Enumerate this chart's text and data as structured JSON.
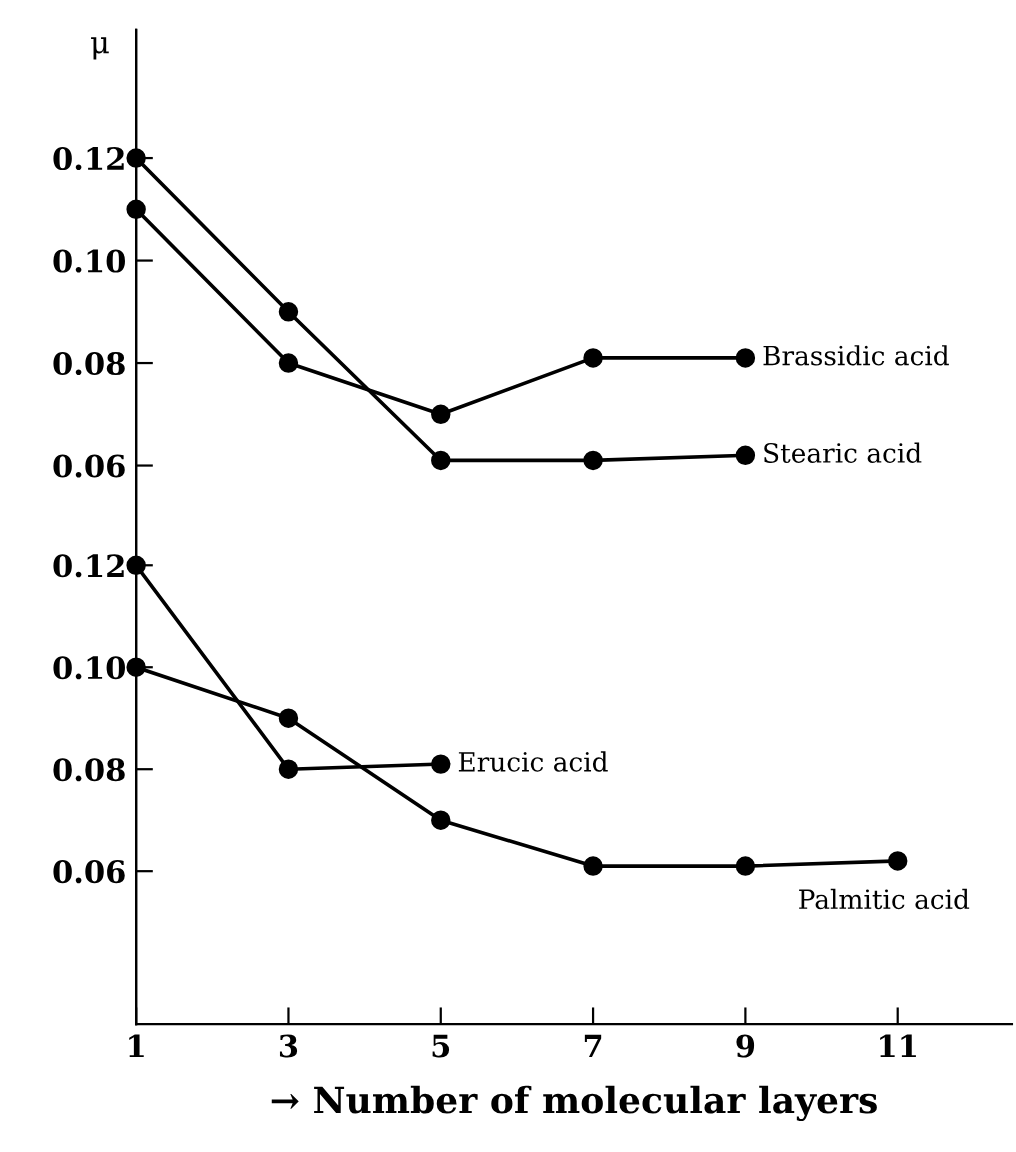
{
  "chart_data": [
    {
      "type": "line",
      "ylabel": "μ",
      "xlim": [
        1,
        12.5
      ],
      "xticks": [
        1,
        3,
        5,
        7,
        9,
        11
      ],
      "ylim": [
        -0.049,
        0.145
      ],
      "yticks": [
        0.06,
        0.08,
        {
          "value": 0.1,
          "label": "0.10"
        },
        0.12
      ],
      "tick_labels": "y",
      "grid": false,
      "marker": "circle",
      "line_style": "solid",
      "series": [
        {
          "name": "Brassidic acid",
          "color": "#000000",
          "x": [
            1,
            3,
            5,
            7,
            9
          ],
          "values": [
            0.11,
            0.08,
            0.07,
            0.081,
            0.081
          ]
        },
        {
          "name": "Stearic acid",
          "color": "#000000",
          "x": [
            1,
            3,
            5,
            7,
            9
          ],
          "values": [
            0.12,
            0.09,
            0.061,
            0.061,
            0.062
          ]
        }
      ]
    },
    {
      "type": "line",
      "xlabel": "→ Number of molecular layers",
      "xlim": [
        1,
        12.5
      ],
      "xticks": [
        1,
        3,
        5,
        7,
        9,
        11
      ],
      "ylim": [
        0.03,
        0.225
      ],
      "yticks": [
        0.06,
        0.08,
        {
          "value": 0.1,
          "label": "0.10"
        },
        0.12
      ],
      "grid": false,
      "marker": "circle",
      "line_style": "solid",
      "series": [
        {
          "name": "Erucic acid",
          "color": "#000000",
          "x": [
            1,
            3,
            5
          ],
          "values": [
            0.12,
            0.08,
            0.081
          ]
        },
        {
          "name": "Palmitic acid",
          "color": "#000000",
          "x": [
            1,
            3,
            5,
            7,
            9,
            11
          ],
          "values": [
            0.1,
            0.09,
            0.07,
            0.061,
            0.061,
            0.062
          ]
        }
      ]
    }
  ]
}
